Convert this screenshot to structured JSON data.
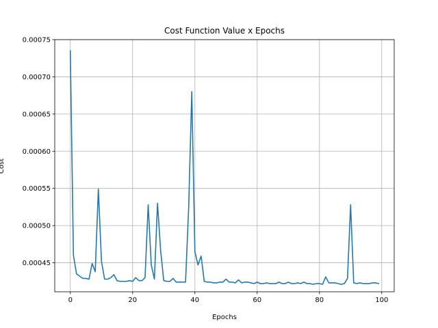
{
  "chart_data": {
    "type": "line",
    "title": "Cost Function Value x Epochs",
    "xlabel": "Epochs",
    "ylabel": "Cost",
    "xlim": [
      -5,
      104
    ],
    "ylim": [
      0.000411,
      0.00075
    ],
    "xticks": [
      0,
      20,
      40,
      60,
      80,
      100
    ],
    "yticks": [
      0.00045,
      0.0005,
      0.00055,
      0.0006,
      0.00065,
      0.0007,
      0.00075
    ],
    "xtick_labels": [
      "0",
      "20",
      "40",
      "60",
      "80",
      "100"
    ],
    "ytick_labels": [
      "0.00045",
      "0.00050",
      "0.00055",
      "0.00060",
      "0.00065",
      "0.00070",
      "0.00075"
    ],
    "grid": true,
    "legend": false,
    "line_color": "#1f77b4",
    "series": [
      {
        "x": [
          0,
          1,
          2,
          3,
          4,
          5,
          6,
          7,
          8,
          9,
          10,
          11,
          12,
          13,
          14,
          15,
          16,
          17,
          18,
          19,
          20,
          21,
          22,
          23,
          24,
          25,
          26,
          27,
          28,
          29,
          30,
          31,
          32,
          33,
          34,
          35,
          36,
          37,
          38,
          39,
          40,
          41,
          42,
          43,
          44,
          45,
          46,
          47,
          48,
          49,
          50,
          51,
          52,
          53,
          54,
          55,
          56,
          57,
          58,
          59,
          60,
          61,
          62,
          63,
          64,
          65,
          66,
          67,
          68,
          69,
          70,
          71,
          72,
          73,
          74,
          75,
          76,
          77,
          78,
          79,
          80,
          81,
          82,
          83,
          84,
          85,
          86,
          87,
          88,
          89,
          90,
          91,
          92,
          93,
          94,
          95,
          96,
          97,
          98,
          99
        ],
        "y": [
          0.000735,
          0.00046,
          0.000435,
          0.000432,
          0.000429,
          0.000429,
          0.000428,
          0.000449,
          0.000438,
          0.000549,
          0.000452,
          0.000428,
          0.000428,
          0.00043,
          0.000434,
          0.000426,
          0.000425,
          0.000425,
          0.000425,
          0.000426,
          0.000425,
          0.00043,
          0.000426,
          0.000426,
          0.00043,
          0.000528,
          0.000447,
          0.000428,
          0.00053,
          0.000466,
          0.000426,
          0.000425,
          0.000425,
          0.000429,
          0.000424,
          0.000424,
          0.000424,
          0.000424,
          0.000524,
          0.00068,
          0.000465,
          0.000447,
          0.000459,
          0.000425,
          0.000424,
          0.000424,
          0.000423,
          0.000423,
          0.000424,
          0.000424,
          0.000428,
          0.000424,
          0.000424,
          0.000423,
          0.000427,
          0.000423,
          0.000424,
          0.000424,
          0.000423,
          0.000422,
          0.000424,
          0.000422,
          0.000422,
          0.000423,
          0.000422,
          0.000422,
          0.000422,
          0.000424,
          0.000422,
          0.000422,
          0.000424,
          0.000422,
          0.000422,
          0.000423,
          0.000422,
          0.000424,
          0.000422,
          0.000422,
          0.000421,
          0.000422,
          0.000422,
          0.000421,
          0.000431,
          0.000423,
          0.000423,
          0.000423,
          0.000422,
          0.000421,
          0.000422,
          0.000429,
          0.000528,
          0.000423,
          0.000422,
          0.000423,
          0.000422,
          0.000422,
          0.000422,
          0.000423,
          0.000423,
          0.000422
        ]
      }
    ]
  }
}
